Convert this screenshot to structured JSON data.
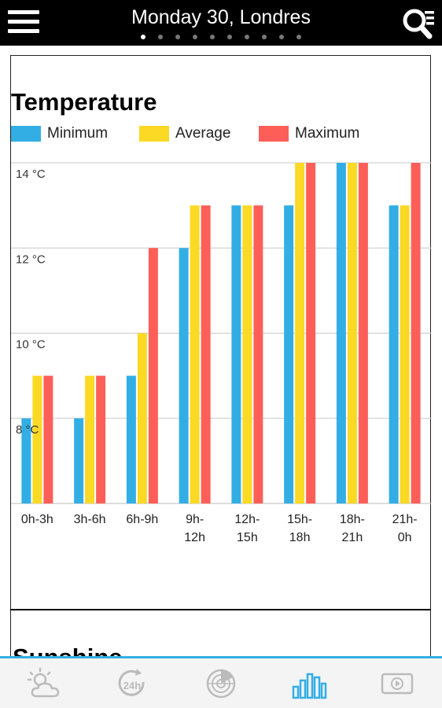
{
  "header": {
    "title": "Monday 30, Londres",
    "page_count": 10,
    "active_page": 0
  },
  "chart_data": {
    "type": "bar",
    "title": "Temperature",
    "categories": [
      "0h-3h",
      "3h-6h",
      "6h-9h",
      "9h-12h",
      "12h-15h",
      "15h-18h",
      "18h-21h",
      "21h-0h"
    ],
    "tick_labels": [
      [
        "0h-3h"
      ],
      [
        "3h-6h"
      ],
      [
        "6h-9h"
      ],
      [
        "9h-",
        "12h"
      ],
      [
        "12h-",
        "15h"
      ],
      [
        "15h-",
        "18h"
      ],
      [
        "18h-",
        "21h"
      ],
      [
        "21h-",
        "0h"
      ]
    ],
    "series": [
      {
        "name": "Minimum",
        "values": [
          8,
          8,
          9,
          12,
          13,
          13,
          14,
          13
        ],
        "color": "#33aee5"
      },
      {
        "name": "Average",
        "values": [
          9,
          9,
          10,
          13,
          13,
          14,
          14,
          13
        ],
        "color": "#fbd924"
      },
      {
        "name": "Maximum",
        "values": [
          9,
          9,
          12,
          13,
          13,
          14,
          14,
          14
        ],
        "color": "#fd5f58"
      }
    ],
    "yticks": [
      8,
      10,
      12,
      14
    ],
    "ytick_labels": [
      "8 °C",
      "10 °C",
      "12 °C",
      "14 °C"
    ],
    "ylim": [
      6,
      14
    ],
    "grid": true,
    "legend": "top-left"
  },
  "next_section": {
    "title": "Sunshine"
  },
  "bottom_nav": [
    "weather-icon",
    "24h-icon",
    "radar-icon",
    "bar-chart-icon",
    "video-icon"
  ],
  "colors": {
    "accent": "#33aee5",
    "topbar": "#000000",
    "nav_icon": "#bbbbbb"
  }
}
